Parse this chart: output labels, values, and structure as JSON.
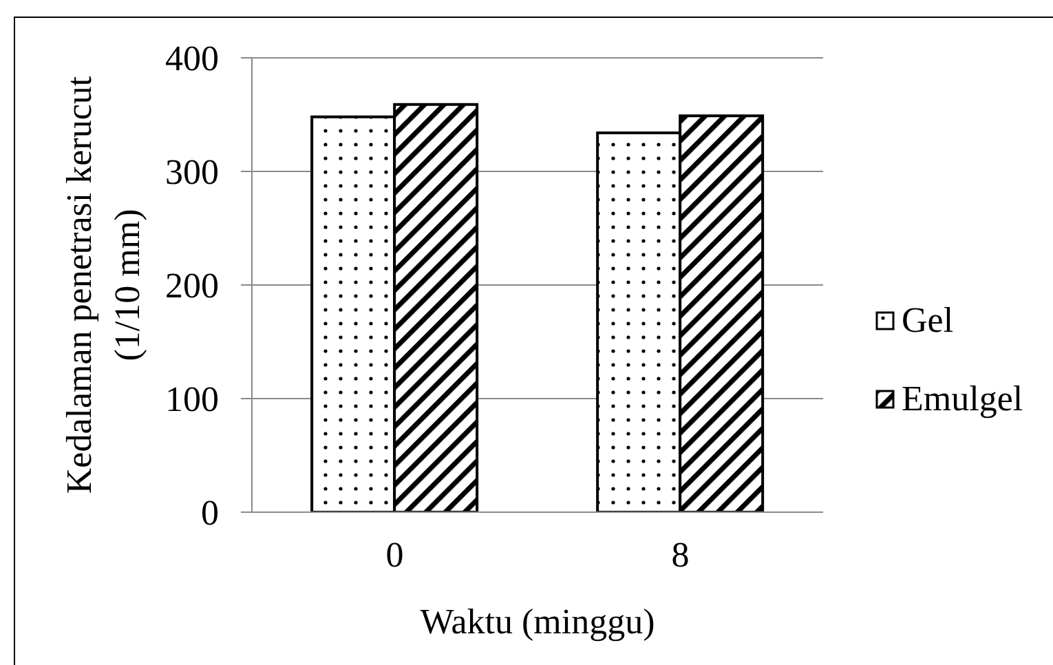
{
  "chart_data": {
    "type": "bar",
    "xlabel": "Waktu (minggu)",
    "ylabel": "Kedalaman penetrasi kerucut\n(1/10 mm)",
    "categories": [
      "0",
      "8"
    ],
    "series": [
      {
        "name": "Gel",
        "color": "#000000",
        "values": [
          348,
          334
        ]
      },
      {
        "name": "Emulgel",
        "color": "#000000",
        "values": [
          359,
          349
        ]
      }
    ],
    "ylim": [
      0,
      400
    ],
    "yticks": [
      0,
      100,
      200,
      300,
      400
    ],
    "grid": "y",
    "legend": "right"
  }
}
